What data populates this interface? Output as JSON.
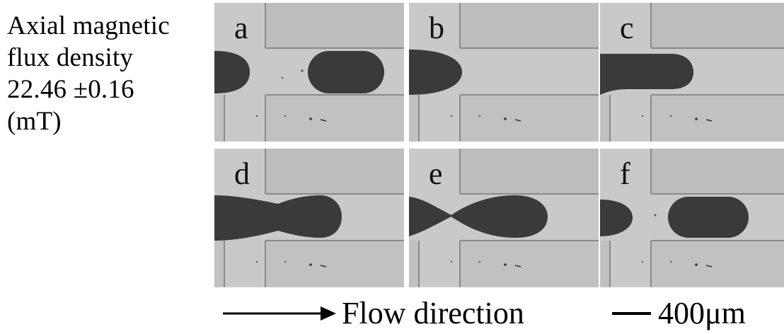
{
  "condition": {
    "line1": "Axial magnetic",
    "line2": "flux density",
    "line3": "22.46 ±0.16",
    "line4": "(mT)"
  },
  "panels": [
    {
      "label": "a"
    },
    {
      "label": "b"
    },
    {
      "label": "c"
    },
    {
      "label": "d"
    },
    {
      "label": "e"
    },
    {
      "label": "f"
    }
  ],
  "legend": {
    "flow_label": "Flow direction",
    "scale_label": "400μm"
  },
  "colors": {
    "droplet": "#3a3a3a",
    "channel": "#c8c8c8",
    "channel_wall": "#8a8a8a",
    "background": "#ffffff"
  }
}
